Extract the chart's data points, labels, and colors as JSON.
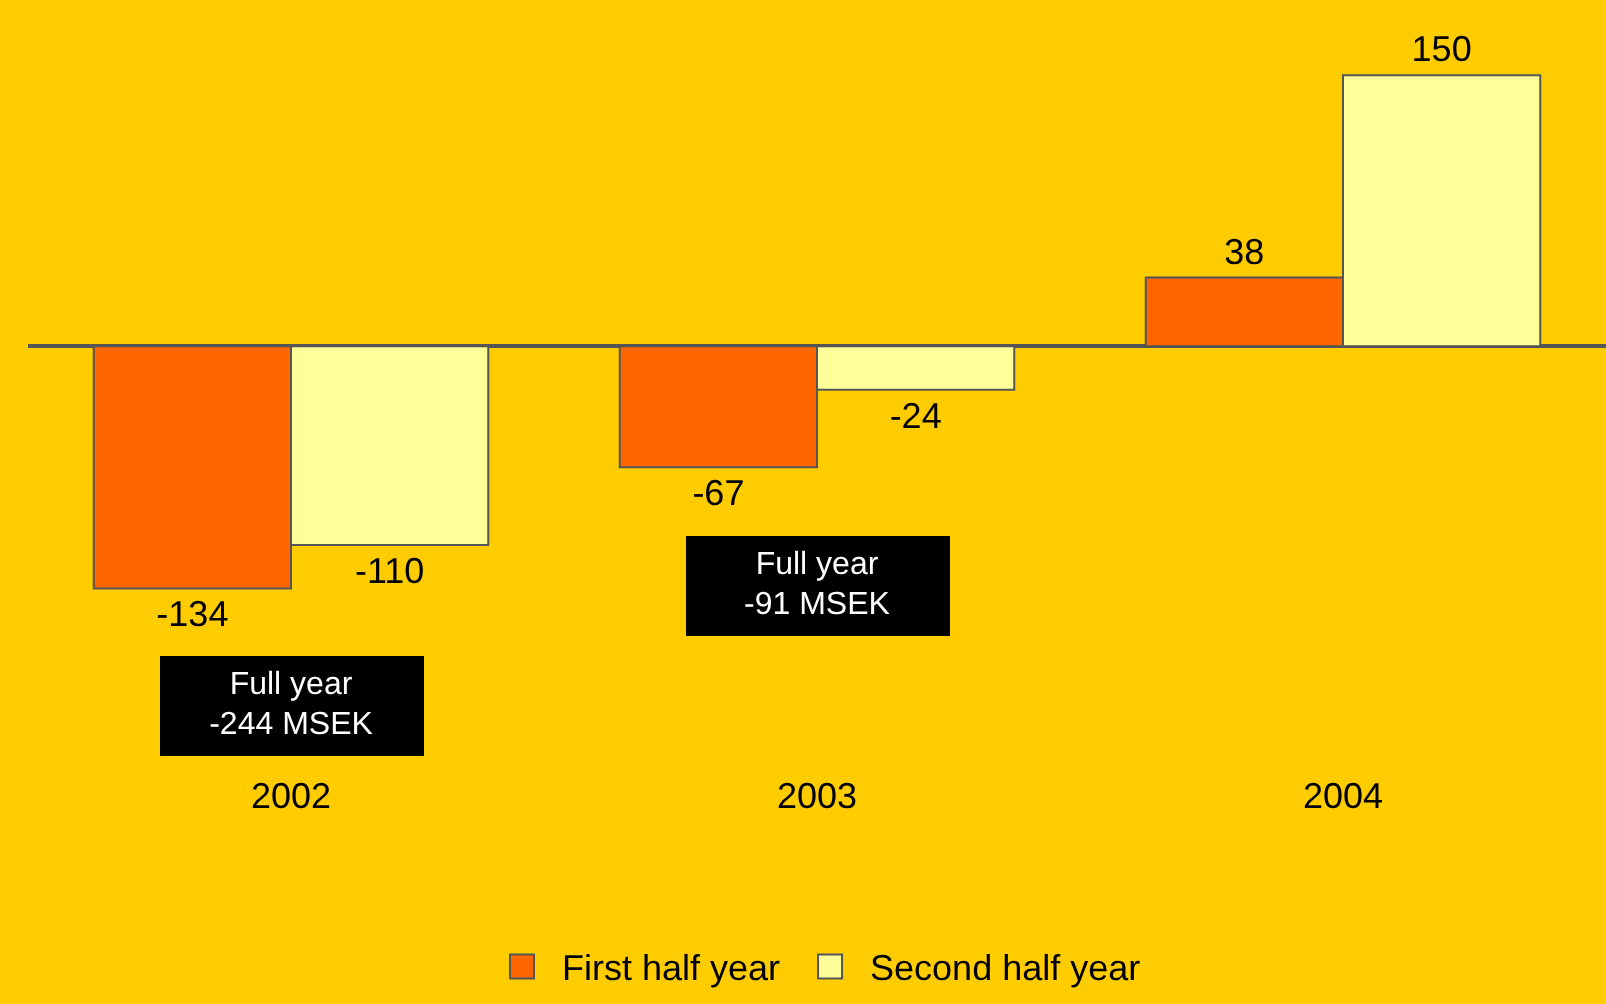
{
  "chart_data": {
    "type": "bar",
    "categories": [
      "2002",
      "2003",
      "2004"
    ],
    "series": [
      {
        "name": "First half year",
        "color": "#ff6600",
        "values": [
          -134,
          -67,
          38
        ]
      },
      {
        "name": "Second half year",
        "color": "#ffff99",
        "values": [
          -110,
          -24,
          150
        ]
      }
    ],
    "data_labels": true,
    "legend": "bottom",
    "grid": false,
    "annotations": [
      "Full year\n-244 MSEK",
      "Full year\n-91 MSEK"
    ]
  }
}
